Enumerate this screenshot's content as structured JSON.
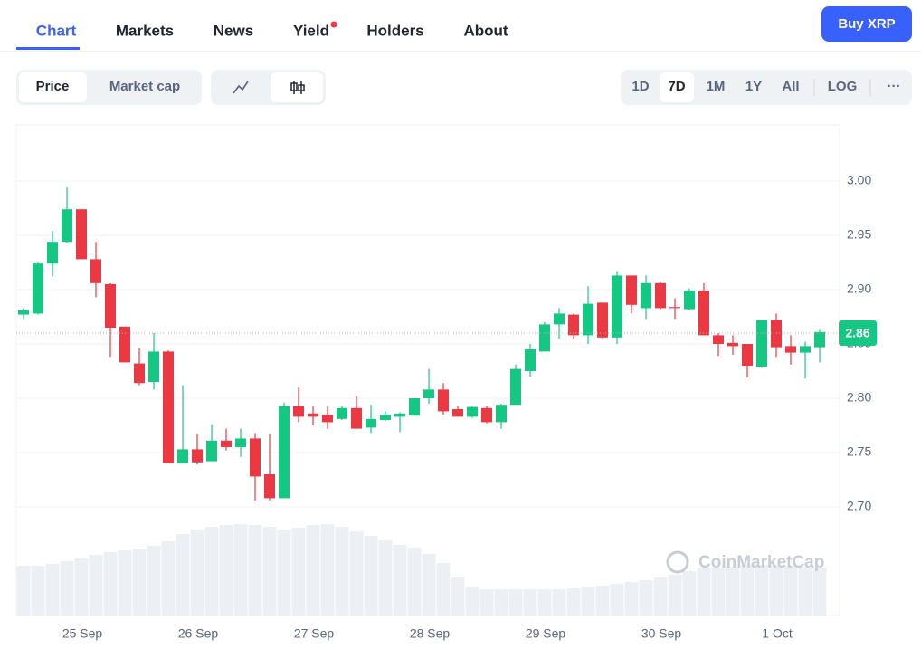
{
  "nav": {
    "tabs": [
      "Chart",
      "Markets",
      "News",
      "Yield",
      "Holders",
      "About"
    ],
    "buy_button": "Buy XRP"
  },
  "controls": {
    "metric": [
      "Price",
      "Market cap"
    ],
    "ranges": [
      "1D",
      "7D",
      "1M",
      "1Y",
      "All"
    ],
    "log": "LOG",
    "more": "···"
  },
  "chart_data": {
    "type": "candlestick",
    "watermark": "CoinMarketCap",
    "categories": [
      null,
      null,
      null,
      null,
      "25 Sep",
      null,
      null,
      null,
      null,
      null,
      null,
      null,
      "26 Sep",
      null,
      null,
      null,
      null,
      null,
      null,
      null,
      "27 Sep",
      null,
      null,
      null,
      null,
      null,
      null,
      null,
      "28 Sep",
      null,
      null,
      null,
      null,
      null,
      null,
      null,
      "29 Sep",
      null,
      null,
      null,
      null,
      null,
      null,
      null,
      "30 Sep",
      null,
      null,
      null,
      null,
      null,
      null,
      null,
      "1 Oct",
      null,
      null,
      null
    ],
    "open": [
      2.877,
      2.878,
      2.924,
      2.944,
      2.974,
      2.928,
      2.905,
      2.866,
      2.832,
      2.815,
      2.843,
      2.74,
      2.753,
      2.742,
      2.761,
      2.755,
      2.763,
      2.73,
      2.708,
      2.793,
      2.786,
      2.785,
      2.781,
      2.791,
      2.773,
      2.78,
      2.783,
      2.784,
      2.8,
      2.808,
      2.79,
      2.783,
      2.791,
      2.778,
      2.794,
      2.825,
      2.843,
      2.868,
      2.877,
      2.858,
      2.888,
      2.856,
      2.913,
      2.883,
      2.906,
      2.884,
      2.882,
      2.899,
      2.858,
      2.851,
      2.85,
      2.829,
      2.872,
      2.848,
      2.842,
      2.847
    ],
    "high": [
      2.883,
      2.925,
      2.954,
      2.994,
      2.974,
      2.944,
      2.906,
      2.866,
      2.846,
      2.86,
      2.844,
      2.812,
      2.767,
      2.776,
      2.772,
      2.772,
      2.768,
      2.767,
      2.796,
      2.81,
      2.793,
      2.793,
      2.793,
      2.802,
      2.794,
      2.788,
      2.787,
      2.8,
      2.827,
      2.814,
      2.793,
      2.793,
      2.793,
      2.795,
      2.831,
      2.85,
      2.87,
      2.883,
      2.878,
      2.903,
      2.888,
      2.917,
      2.913,
      2.913,
      2.907,
      2.892,
      2.901,
      2.906,
      2.86,
      2.858,
      2.85,
      2.872,
      2.878,
      2.858,
      2.852,
      2.863
    ],
    "low": [
      2.873,
      2.877,
      2.912,
      2.943,
      2.928,
      2.893,
      2.838,
      2.833,
      2.812,
      2.808,
      2.74,
      2.74,
      2.739,
      2.742,
      2.752,
      2.746,
      2.706,
      2.706,
      2.708,
      2.778,
      2.775,
      2.772,
      2.78,
      2.772,
      2.768,
      2.779,
      2.769,
      2.784,
      2.795,
      2.785,
      2.783,
      2.782,
      2.777,
      2.772,
      2.794,
      2.82,
      2.843,
      2.855,
      2.855,
      2.85,
      2.855,
      2.85,
      2.878,
      2.873,
      2.882,
      2.873,
      2.881,
      2.858,
      2.839,
      2.84,
      2.819,
      2.828,
      2.838,
      2.831,
      2.818,
      2.833
    ],
    "close": [
      2.881,
      2.924,
      2.944,
      2.974,
      2.928,
      2.906,
      2.865,
      2.833,
      2.814,
      2.843,
      2.74,
      2.753,
      2.741,
      2.761,
      2.755,
      2.763,
      2.728,
      2.708,
      2.793,
      2.783,
      2.783,
      2.778,
      2.791,
      2.772,
      2.781,
      2.785,
      2.786,
      2.8,
      2.808,
      2.788,
      2.783,
      2.792,
      2.778,
      2.794,
      2.827,
      2.845,
      2.868,
      2.878,
      2.858,
      2.887,
      2.856,
      2.913,
      2.886,
      2.906,
      2.883,
      2.883,
      2.899,
      2.858,
      2.85,
      2.848,
      2.83,
      2.872,
      2.847,
      2.842,
      2.848,
      2.861
    ],
    "volume": [
      55,
      55,
      57,
      60,
      63,
      67,
      70,
      72,
      74,
      77,
      82,
      90,
      95,
      98,
      100,
      101,
      100,
      98,
      95,
      97,
      100,
      101,
      98,
      93,
      88,
      83,
      78,
      75,
      68,
      58,
      42,
      32,
      29,
      29,
      29,
      29,
      29,
      29,
      30,
      32,
      33,
      35,
      37,
      39,
      42,
      45,
      49,
      52,
      53,
      54,
      56,
      56,
      56,
      55,
      54,
      53
    ],
    "up_color": "#16c784",
    "down_color": "#ea3943",
    "volume_color": "#eceff3",
    "current_price": 2.86,
    "ylim": [
      2.6,
      3.05
    ],
    "yticks": [
      {
        "value": 2.7,
        "label": "2.70"
      },
      {
        "value": 2.75,
        "label": "2.75"
      },
      {
        "value": 2.8,
        "label": "2.80"
      },
      {
        "value": 2.85,
        "label": "2.85"
      },
      {
        "value": 2.9,
        "label": "2.90"
      },
      {
        "value": 2.95,
        "label": "2.95"
      },
      {
        "value": 3,
        "label": "3.00"
      }
    ],
    "grid": true
  }
}
